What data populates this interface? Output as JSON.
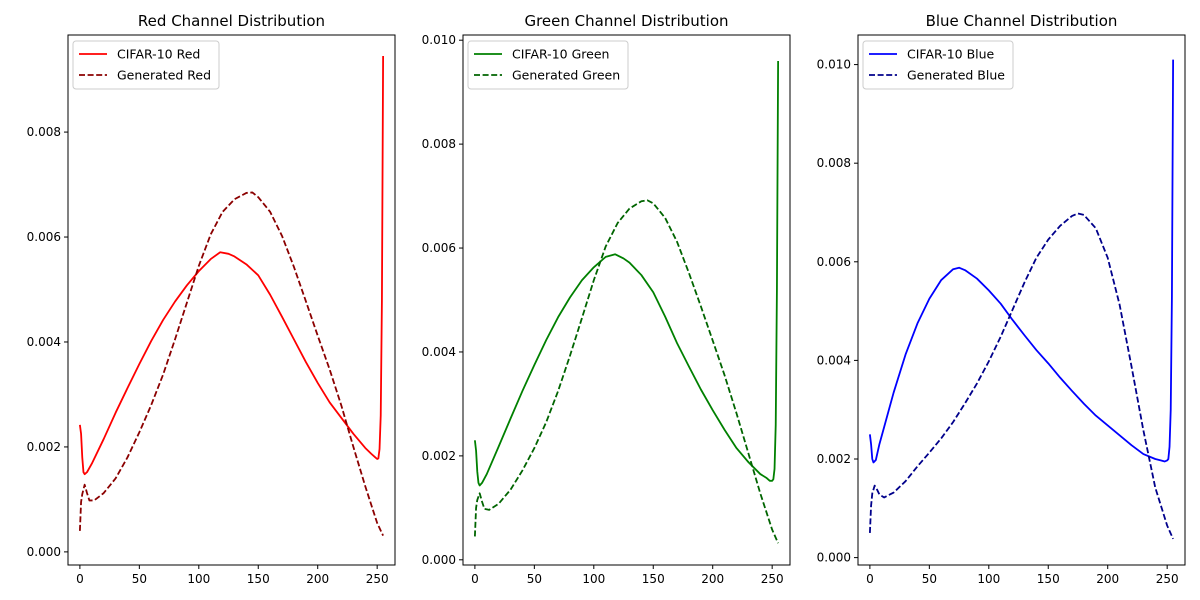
{
  "chart_data": [
    {
      "type": "line",
      "title": "Red Channel Distribution",
      "xlim": [
        -10,
        265
      ],
      "ylim": [
        -0.00025,
        0.00985
      ],
      "xticks": [
        0,
        50,
        100,
        150,
        200,
        250
      ],
      "xtick_labels": [
        "0",
        "50",
        "100",
        "150",
        "200",
        "250"
      ],
      "yticks": [
        0.0,
        0.002,
        0.004,
        0.006,
        0.008
      ],
      "ytick_labels": [
        "0.000",
        "0.002",
        "0.004",
        "0.006",
        "0.008"
      ],
      "legend_position": "top-left",
      "series": [
        {
          "name": "CIFAR-10 Red",
          "color": "#ff0000",
          "dash": "solid",
          "points": [
            [
              0,
              0.00242
            ],
            [
              1,
              0.00225
            ],
            [
              2,
              0.0018
            ],
            [
              3,
              0.00152
            ],
            [
              4,
              0.00148
            ],
            [
              6,
              0.00152
            ],
            [
              10,
              0.00168
            ],
            [
              20,
              0.00215
            ],
            [
              30,
              0.00265
            ],
            [
              40,
              0.00312
            ],
            [
              50,
              0.00358
            ],
            [
              60,
              0.00402
            ],
            [
              70,
              0.00442
            ],
            [
              80,
              0.00477
            ],
            [
              90,
              0.00508
            ],
            [
              100,
              0.00535
            ],
            [
              110,
              0.00558
            ],
            [
              118,
              0.00571
            ],
            [
              125,
              0.00568
            ],
            [
              130,
              0.00563
            ],
            [
              140,
              0.00548
            ],
            [
              150,
              0.00527
            ],
            [
              160,
              0.0049
            ],
            [
              170,
              0.00448
            ],
            [
              180,
              0.00405
            ],
            [
              190,
              0.00362
            ],
            [
              200,
              0.00322
            ],
            [
              210,
              0.00285
            ],
            [
              220,
              0.00255
            ],
            [
              230,
              0.00225
            ],
            [
              240,
              0.00198
            ],
            [
              245,
              0.00187
            ],
            [
              248,
              0.00181
            ],
            [
              250,
              0.00177
            ],
            [
              251,
              0.00178
            ],
            [
              252,
              0.00196
            ],
            [
              253,
              0.0026
            ],
            [
              254,
              0.0048
            ],
            [
              255,
              0.00945
            ]
          ]
        },
        {
          "name": "Generated Red",
          "color": "#8b0000",
          "dash": "dashed",
          "points": [
            [
              0,
              0.0004
            ],
            [
              1,
              0.00095
            ],
            [
              2,
              0.0011
            ],
            [
              4,
              0.00128
            ],
            [
              6,
              0.00112
            ],
            [
              8,
              0.00098
            ],
            [
              12,
              0.00098
            ],
            [
              20,
              0.00112
            ],
            [
              30,
              0.0014
            ],
            [
              40,
              0.0018
            ],
            [
              50,
              0.00228
            ],
            [
              60,
              0.0028
            ],
            [
              70,
              0.00338
            ],
            [
              80,
              0.00405
            ],
            [
              90,
              0.00475
            ],
            [
              100,
              0.00545
            ],
            [
              110,
              0.00605
            ],
            [
              120,
              0.00648
            ],
            [
              130,
              0.00672
            ],
            [
              140,
              0.00684
            ],
            [
              145,
              0.00685
            ],
            [
              150,
              0.00676
            ],
            [
              160,
              0.00648
            ],
            [
              170,
              0.00602
            ],
            [
              180,
              0.00543
            ],
            [
              190,
              0.00478
            ],
            [
              200,
              0.00412
            ],
            [
              210,
              0.00348
            ],
            [
              220,
              0.00278
            ],
            [
              230,
              0.002
            ],
            [
              240,
              0.00125
            ],
            [
              250,
              0.00055
            ],
            [
              255,
              0.00031
            ]
          ]
        }
      ]
    },
    {
      "type": "line",
      "title": "Green Channel Distribution",
      "xlim": [
        -10,
        265
      ],
      "ylim": [
        -0.0001,
        0.0101
      ],
      "xticks": [
        0,
        50,
        100,
        150,
        200,
        250
      ],
      "xtick_labels": [
        "0",
        "50",
        "100",
        "150",
        "200",
        "250"
      ],
      "yticks": [
        0.0,
        0.002,
        0.004,
        0.006,
        0.008,
        0.01
      ],
      "ytick_labels": [
        "0.000",
        "0.002",
        "0.004",
        "0.006",
        "0.008",
        "0.010"
      ],
      "legend_position": "top-left",
      "series": [
        {
          "name": "CIFAR-10 Green",
          "color": "#008000",
          "dash": "solid",
          "points": [
            [
              0,
              0.0023
            ],
            [
              1,
              0.0021
            ],
            [
              2,
              0.0017
            ],
            [
              3,
              0.00148
            ],
            [
              4,
              0.00143
            ],
            [
              6,
              0.00148
            ],
            [
              10,
              0.00165
            ],
            [
              20,
              0.00218
            ],
            [
              30,
              0.00272
            ],
            [
              40,
              0.00325
            ],
            [
              50,
              0.00375
            ],
            [
              60,
              0.00423
            ],
            [
              70,
              0.00467
            ],
            [
              80,
              0.00505
            ],
            [
              90,
              0.00538
            ],
            [
              100,
              0.00563
            ],
            [
              110,
              0.00583
            ],
            [
              118,
              0.00588
            ],
            [
              125,
              0.0058
            ],
            [
              130,
              0.00572
            ],
            [
              140,
              0.00548
            ],
            [
              150,
              0.00515
            ],
            [
              160,
              0.00468
            ],
            [
              170,
              0.00417
            ],
            [
              180,
              0.00372
            ],
            [
              190,
              0.00328
            ],
            [
              200,
              0.00288
            ],
            [
              210,
              0.0025
            ],
            [
              220,
              0.00215
            ],
            [
              230,
              0.00188
            ],
            [
              240,
              0.00165
            ],
            [
              245,
              0.00158
            ],
            [
              248,
              0.00152
            ],
            [
              250,
              0.00152
            ],
            [
              251,
              0.00155
            ],
            [
              252,
              0.00175
            ],
            [
              253,
              0.0026
            ],
            [
              254,
              0.0052
            ],
            [
              255,
              0.0096
            ]
          ]
        },
        {
          "name": "Generated Green",
          "color": "#006400",
          "dash": "dashed",
          "points": [
            [
              0,
              0.00045
            ],
            [
              1,
              0.001
            ],
            [
              2,
              0.00115
            ],
            [
              4,
              0.00128
            ],
            [
              6,
              0.00112
            ],
            [
              8,
              0.00098
            ],
            [
              12,
              0.00096
            ],
            [
              20,
              0.00108
            ],
            [
              30,
              0.00135
            ],
            [
              40,
              0.00172
            ],
            [
              50,
              0.00215
            ],
            [
              60,
              0.00265
            ],
            [
              70,
              0.00325
            ],
            [
              80,
              0.00393
            ],
            [
              90,
              0.00465
            ],
            [
              100,
              0.00538
            ],
            [
              110,
              0.00603
            ],
            [
              120,
              0.00648
            ],
            [
              130,
              0.00676
            ],
            [
              140,
              0.0069
            ],
            [
              145,
              0.00692
            ],
            [
              150,
              0.00686
            ],
            [
              160,
              0.00658
            ],
            [
              170,
              0.00612
            ],
            [
              180,
              0.00552
            ],
            [
              190,
              0.00488
            ],
            [
              200,
              0.00422
            ],
            [
              210,
              0.00355
            ],
            [
              220,
              0.00282
            ],
            [
              230,
              0.00205
            ],
            [
              240,
              0.00128
            ],
            [
              250,
              0.00058
            ],
            [
              255,
              0.00032
            ]
          ]
        }
      ]
    },
    {
      "type": "line",
      "title": "Blue Channel Distribution",
      "xlim": [
        -10,
        265
      ],
      "ylim": [
        -0.00015,
        0.0106
      ],
      "xticks": [
        0,
        50,
        100,
        150,
        200,
        250
      ],
      "xtick_labels": [
        "0",
        "50",
        "100",
        "150",
        "200",
        "250"
      ],
      "yticks": [
        0.0,
        0.002,
        0.004,
        0.006,
        0.008,
        0.01
      ],
      "ytick_labels": [
        "0.000",
        "0.002",
        "0.004",
        "0.006",
        "0.008",
        "0.010"
      ],
      "legend_position": "top-left",
      "series": [
        {
          "name": "CIFAR-10 Blue",
          "color": "#0000ff",
          "dash": "solid",
          "points": [
            [
              0,
              0.0025
            ],
            [
              1,
              0.0023
            ],
            [
              2,
              0.002
            ],
            [
              3,
              0.00193
            ],
            [
              5,
              0.00198
            ],
            [
              8,
              0.0023
            ],
            [
              12,
              0.00265
            ],
            [
              20,
              0.00335
            ],
            [
              30,
              0.00412
            ],
            [
              40,
              0.00475
            ],
            [
              50,
              0.00525
            ],
            [
              60,
              0.00563
            ],
            [
              70,
              0.00585
            ],
            [
              75,
              0.00588
            ],
            [
              80,
              0.00583
            ],
            [
              90,
              0.00566
            ],
            [
              100,
              0.00542
            ],
            [
              110,
              0.00515
            ],
            [
              120,
              0.00482
            ],
            [
              130,
              0.00451
            ],
            [
              140,
              0.00421
            ],
            [
              150,
              0.00394
            ],
            [
              160,
              0.00365
            ],
            [
              170,
              0.00338
            ],
            [
              180,
              0.00312
            ],
            [
              190,
              0.00288
            ],
            [
              200,
              0.00268
            ],
            [
              210,
              0.00248
            ],
            [
              220,
              0.00228
            ],
            [
              230,
              0.0021
            ],
            [
              240,
              0.002
            ],
            [
              245,
              0.00197
            ],
            [
              248,
              0.00195
            ],
            [
              250,
              0.00197
            ],
            [
              251,
              0.002
            ],
            [
              252,
              0.00225
            ],
            [
              253,
              0.003
            ],
            [
              254,
              0.0053
            ],
            [
              255,
              0.0101
            ]
          ]
        },
        {
          "name": "Generated Blue",
          "color": "#00008b",
          "dash": "dashed",
          "points": [
            [
              0,
              0.0005
            ],
            [
              1,
              0.00105
            ],
            [
              2,
              0.0013
            ],
            [
              4,
              0.00146
            ],
            [
              6,
              0.00138
            ],
            [
              8,
              0.00128
            ],
            [
              12,
              0.00122
            ],
            [
              20,
              0.00132
            ],
            [
              30,
              0.00155
            ],
            [
              40,
              0.00185
            ],
            [
              50,
              0.00213
            ],
            [
              60,
              0.00242
            ],
            [
              70,
              0.00275
            ],
            [
              80,
              0.00313
            ],
            [
              90,
              0.00353
            ],
            [
              100,
              0.00398
            ],
            [
              110,
              0.00448
            ],
            [
              120,
              0.00503
            ],
            [
              130,
              0.00558
            ],
            [
              140,
              0.00608
            ],
            [
              150,
              0.00645
            ],
            [
              160,
              0.00673
            ],
            [
              170,
              0.00693
            ],
            [
              175,
              0.00698
            ],
            [
              180,
              0.00695
            ],
            [
              190,
              0.00668
            ],
            [
              200,
              0.00608
            ],
            [
              210,
              0.00513
            ],
            [
              220,
              0.00388
            ],
            [
              230,
              0.00258
            ],
            [
              240,
              0.00142
            ],
            [
              250,
              0.00065
            ],
            [
              255,
              0.00038
            ]
          ]
        }
      ]
    }
  ]
}
